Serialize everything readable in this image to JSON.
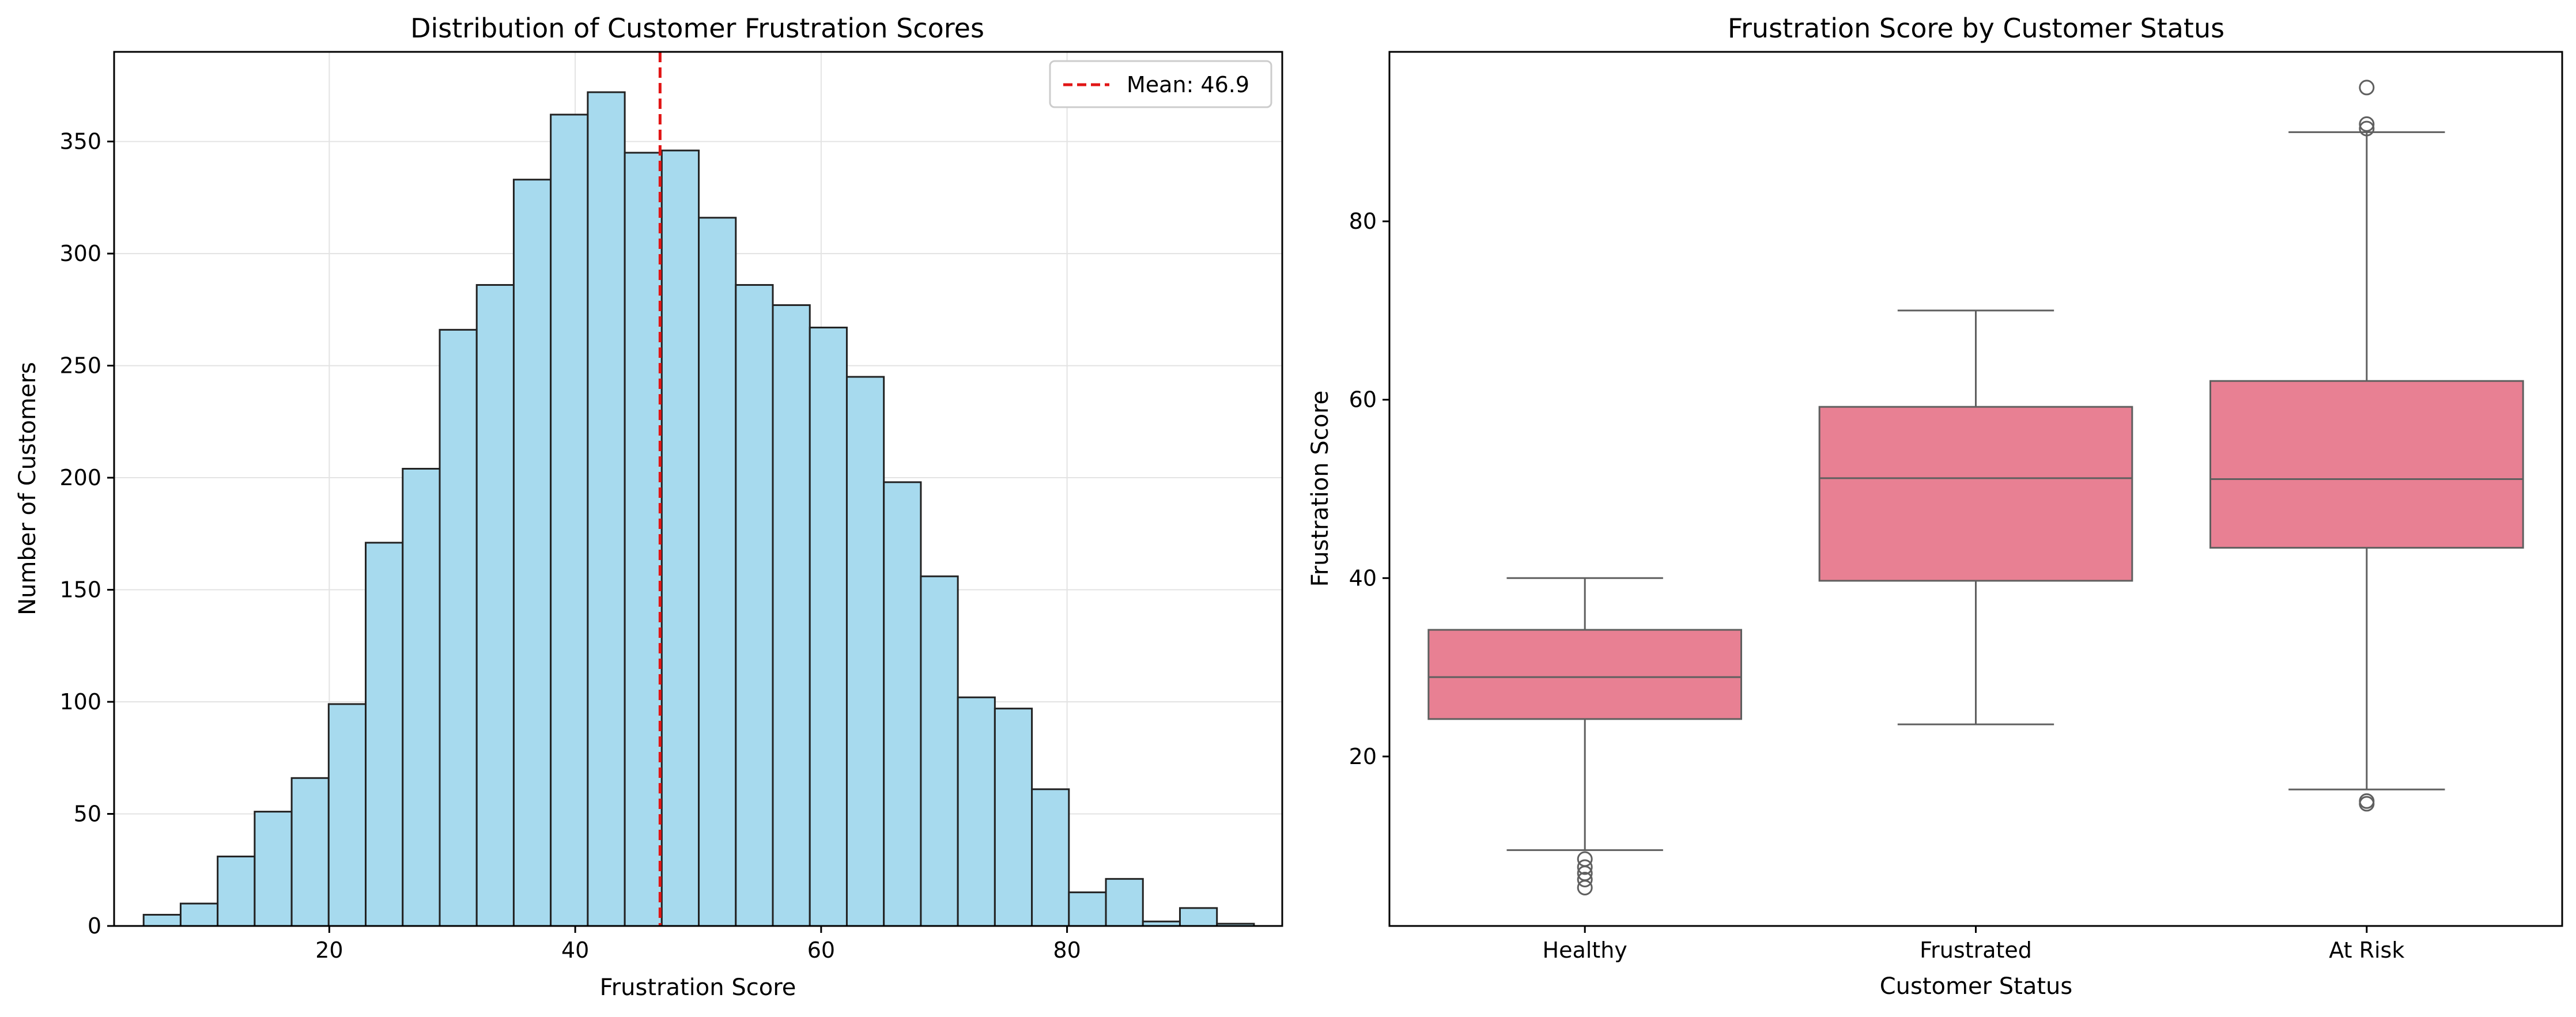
{
  "colors": {
    "hist_fill": "#a7daee",
    "hist_edge": "#222222",
    "mean_line": "#e11515",
    "box_fill": "#e88093",
    "box_line": "#5f5f5f",
    "grid": "#e3e3e3"
  },
  "chart_data": [
    {
      "type": "bar",
      "subtype": "histogram",
      "title": "Distribution of Customer Frustration Scores",
      "xlabel": "Frustration Score",
      "ylabel": "Number of Customers",
      "xlim": [
        2.5,
        97.5
      ],
      "ylim": [
        0,
        390
      ],
      "xticks": [
        20,
        40,
        60,
        80
      ],
      "yticks": [
        0,
        50,
        100,
        150,
        200,
        250,
        300,
        350
      ],
      "grid": true,
      "bins_start": 4.9,
      "bin_width": 3.01,
      "counts": [
        5,
        10,
        31,
        51,
        66,
        99,
        171,
        204,
        266,
        286,
        333,
        362,
        372,
        345,
        346,
        316,
        286,
        277,
        267,
        245,
        198,
        156,
        102,
        97,
        61,
        15,
        21,
        2,
        8,
        1
      ],
      "mean": 46.9,
      "legend": {
        "position": "top-right",
        "entries": [
          "Mean: 46.9"
        ]
      }
    },
    {
      "type": "box",
      "title": "Frustration Score by Customer Status",
      "xlabel": "Customer Status",
      "ylabel": "Frustration Score",
      "ylim": [
        1,
        99
      ],
      "yticks": [
        20,
        40,
        60,
        80
      ],
      "grid": false,
      "categories": [
        "Healthy",
        "Frustrated",
        "At Risk"
      ],
      "boxes": [
        {
          "whisker_low": 9.5,
          "q1": 24.2,
          "median": 28.9,
          "q3": 34.2,
          "whisker_high": 40.0,
          "outliers": [
            8.5,
            7.6,
            6.9,
            6.2,
            5.3
          ]
        },
        {
          "whisker_low": 23.6,
          "q1": 39.7,
          "median": 51.2,
          "q3": 59.2,
          "whisker_high": 70.0,
          "outliers": []
        },
        {
          "whisker_low": 16.3,
          "q1": 43.4,
          "median": 51.1,
          "q3": 62.1,
          "whisker_high": 90.0,
          "outliers": [
            95.0,
            90.9,
            90.4,
            15.0,
            14.7
          ]
        }
      ]
    }
  ]
}
